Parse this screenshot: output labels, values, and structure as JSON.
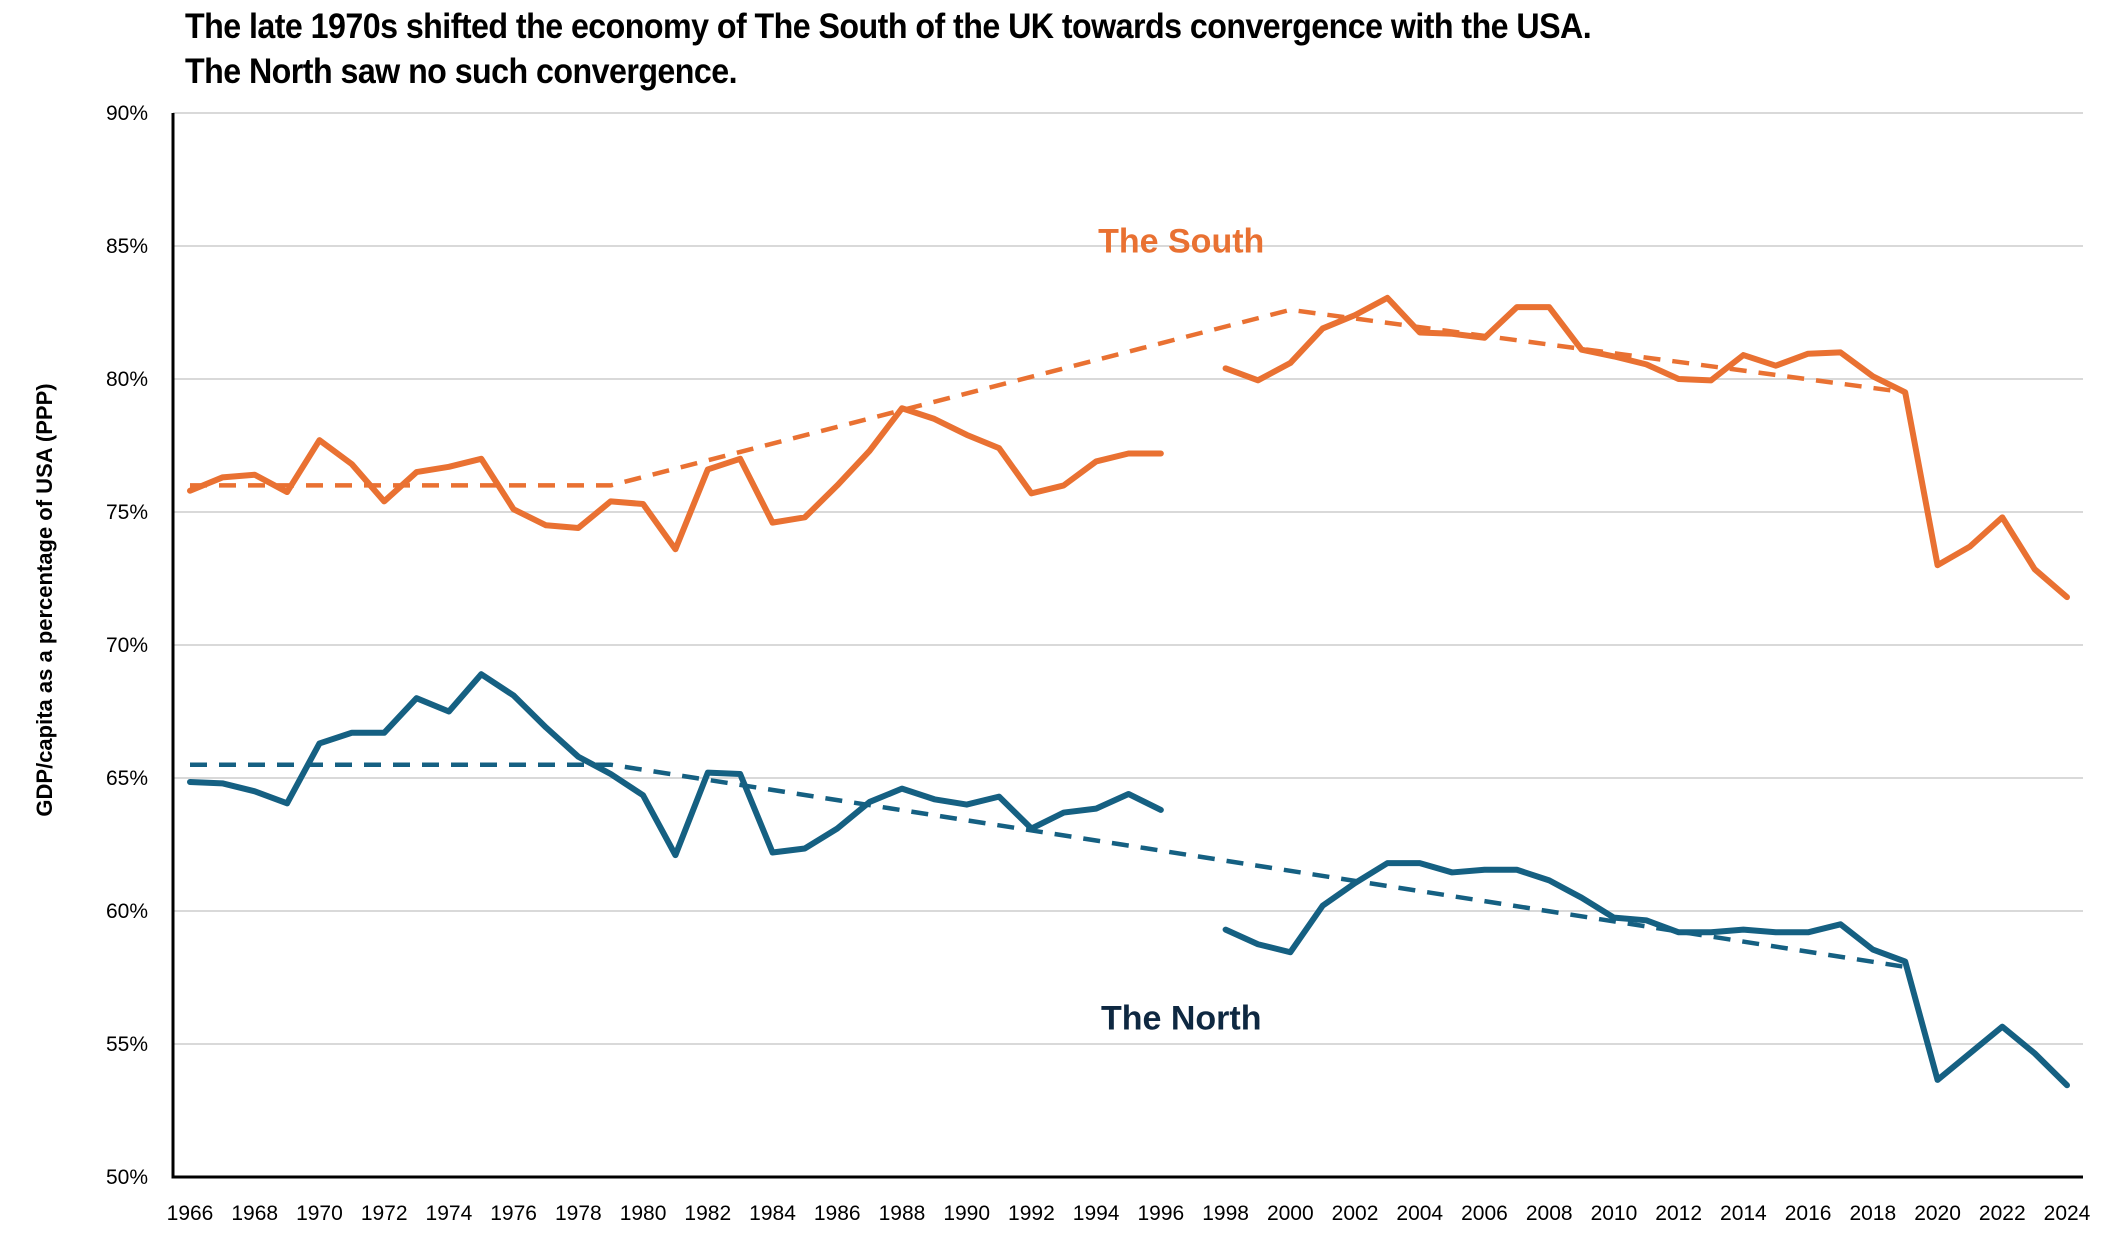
{
  "chart_data": {
    "type": "line",
    "title": "The late 1970s shifted the economy of The South of the UK towards convergence with the USA.",
    "subtitle": "The North saw no such convergence.",
    "xlabel": "",
    "ylabel": "GDP/capita as a percentage of USA (PPP)",
    "xlim": [
      1966,
      2024
    ],
    "ylim": [
      50,
      90
    ],
    "grid": true,
    "legend": "none (inline labels)",
    "x_ticks": [
      "1966",
      "1968",
      "1970",
      "1972",
      "1974",
      "1976",
      "1978",
      "1980",
      "1982",
      "1984",
      "1986",
      "1988",
      "1990",
      "1992",
      "1994",
      "1996",
      "1998",
      "2000",
      "2002",
      "2004",
      "2006",
      "2008",
      "2010",
      "2012",
      "2014",
      "2016",
      "2018",
      "2020",
      "2022",
      "2024"
    ],
    "y_ticks": [
      "50%",
      "55%",
      "60%",
      "65%",
      "70%",
      "75%",
      "80%",
      "85%",
      "90%"
    ],
    "y_tick_values": [
      50,
      55,
      60,
      65,
      70,
      75,
      80,
      85,
      90
    ],
    "colors": {
      "south": "#E97132",
      "north": "#156082",
      "north_label": "#0E2841",
      "grid": "#D9D9D9",
      "axis": "#000000"
    },
    "series": [
      {
        "name": "The South",
        "label": "The South",
        "label_anchor": {
          "x": 1997,
          "y": 85.2
        },
        "segments": [
          {
            "x": [
              1966,
              1967,
              1968,
              1969,
              1970,
              1971,
              1972,
              1973,
              1974,
              1975,
              1976,
              1977,
              1978,
              1979,
              1980,
              1981,
              1982,
              1983,
              1984,
              1985,
              1986,
              1987,
              1988,
              1989,
              1990,
              1991,
              1992,
              1993,
              1994,
              1995,
              1996
            ],
            "values": [
              75.8,
              76.3,
              76.4,
              75.75,
              77.7,
              76.8,
              75.4,
              76.5,
              76.7,
              77.0,
              75.1,
              74.5,
              74.4,
              75.4,
              75.3,
              73.6,
              76.6,
              77.0,
              74.6,
              74.8,
              76.0,
              77.3,
              78.9,
              78.5,
              77.9,
              77.4,
              75.7,
              76.0,
              76.9,
              77.2,
              77.2
            ]
          },
          {
            "x": [
              1998,
              1999,
              2000,
              2001,
              2002,
              2003,
              2004,
              2005,
              2006,
              2007,
              2008,
              2009,
              2010,
              2011,
              2012,
              2013,
              2014,
              2015,
              2016,
              2017,
              2018,
              2019,
              2020,
              2021,
              2022,
              2023,
              2024
            ],
            "values": [
              80.4,
              79.95,
              80.6,
              81.9,
              82.4,
              83.05,
              81.75,
              81.7,
              81.55,
              82.7,
              82.7,
              81.1,
              80.85,
              80.55,
              80.0,
              79.95,
              80.9,
              80.5,
              80.95,
              81.0,
              80.1,
              79.5,
              73.0,
              73.7,
              74.8,
              72.85,
              71.8
            ]
          }
        ],
        "trend": {
          "style": "dashed",
          "x": [
            1966,
            1979,
            2000,
            2019
          ],
          "values": [
            76.0,
            76.0,
            82.6,
            79.5
          ]
        }
      },
      {
        "name": "The North",
        "label": "The North",
        "label_anchor": {
          "x": 1997,
          "y": 56.0
        },
        "segments": [
          {
            "x": [
              1966,
              1967,
              1968,
              1969,
              1970,
              1971,
              1972,
              1973,
              1974,
              1975,
              1976,
              1977,
              1978,
              1979,
              1980,
              1981,
              1982,
              1983,
              1984,
              1985,
              1986,
              1987,
              1988,
              1989,
              1990,
              1991,
              1992,
              1993,
              1994,
              1995,
              1996
            ],
            "values": [
              64.85,
              64.8,
              64.5,
              64.05,
              66.3,
              66.7,
              66.7,
              68.0,
              67.5,
              68.9,
              68.1,
              66.9,
              65.8,
              65.15,
              64.35,
              62.1,
              65.2,
              65.15,
              62.2,
              62.35,
              63.1,
              64.1,
              64.6,
              64.2,
              64.0,
              64.3,
              63.1,
              63.7,
              63.85,
              64.4,
              63.8
            ]
          },
          {
            "x": [
              1998,
              1999,
              2000,
              2001,
              2002,
              2003,
              2004,
              2005,
              2006,
              2007,
              2008,
              2009,
              2010,
              2011,
              2012,
              2013,
              2014,
              2015,
              2016,
              2017,
              2018,
              2019,
              2020,
              2021,
              2022,
              2023,
              2024
            ],
            "values": [
              59.3,
              58.75,
              58.45,
              60.2,
              61.05,
              61.8,
              61.8,
              61.45,
              61.55,
              61.55,
              61.15,
              60.5,
              59.75,
              59.65,
              59.2,
              59.2,
              59.3,
              59.2,
              59.2,
              59.5,
              58.55,
              58.1,
              53.65,
              54.65,
              55.65,
              54.65,
              53.45
            ]
          }
        ],
        "trend": {
          "style": "dashed",
          "x": [
            1966,
            1979,
            2019
          ],
          "values": [
            65.5,
            65.5,
            57.9
          ]
        }
      }
    ]
  }
}
